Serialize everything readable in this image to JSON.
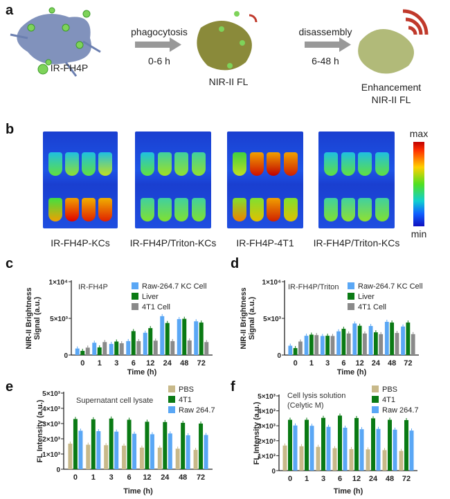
{
  "panels": {
    "a": {
      "label": "a",
      "probe_label": "IR-FH4P",
      "step1": {
        "label": "phagocytosis",
        "time": "0-6 h"
      },
      "cell2_label": "NIR-II FL",
      "step2": {
        "label": "disassembly",
        "time": "6-48 h"
      },
      "cell3_label_1": "Enhancement",
      "cell3_label_2": "NIR-II FL"
    },
    "b": {
      "label": "b",
      "images": [
        "IR-FH4P-KCs",
        "IR-FH4P/Triton-KCs",
        "IR-FH4P-4T1",
        "IR-FH4P/Triton-KCs"
      ],
      "colorbar": {
        "max": "max",
        "min": "min"
      }
    }
  },
  "chart_data": [
    {
      "panel": "c",
      "type": "bar",
      "title": "IR-FH4P",
      "xlabel": "Time (h)",
      "ylabel": [
        "NIR-II Brightness",
        "Signal (a.u.)"
      ],
      "categories": [
        "0",
        "1",
        "3",
        "6",
        "12",
        "24",
        "48",
        "72"
      ],
      "ylim": [
        0,
        10000
      ],
      "yticks": [
        {
          "v": 0,
          "label": "0"
        },
        {
          "v": 5000,
          "label": "5×10³"
        },
        {
          "v": 10000,
          "label": "1×10⁴"
        }
      ],
      "series": [
        {
          "name": "Raw-264.7 KC Cell",
          "color": "#5aa7f5",
          "values": [
            890,
            1680,
            1520,
            1900,
            3040,
            5300,
            4900,
            4600
          ]
        },
        {
          "name": "Liver",
          "color": "#0a7a14",
          "values": [
            570,
            1040,
            1840,
            3260,
            3670,
            4370,
            4940,
            4430
          ]
        },
        {
          "name": "4T1 Cell",
          "color": "#8a8a8a",
          "values": [
            1010,
            1770,
            1610,
            1900,
            1960,
            1900,
            1990,
            1770
          ]
        }
      ]
    },
    {
      "panel": "d",
      "type": "bar",
      "title": "IR-FH4P/Triton",
      "xlabel": "Time (h)",
      "ylabel": [
        "NIR-II Brightness",
        "Signal (a.u.)"
      ],
      "categories": [
        "0",
        "1",
        "3",
        "6",
        "12",
        "24",
        "48",
        "72"
      ],
      "ylim": [
        0,
        10000
      ],
      "yticks": [
        {
          "v": 0,
          "label": "0"
        },
        {
          "v": 5000,
          "label": "5×10³"
        },
        {
          "v": 10000,
          "label": "1×10⁴"
        }
      ],
      "series": [
        {
          "name": "Raw-264.7 KC Cell",
          "color": "#5aa7f5",
          "values": [
            1270,
            2630,
            2600,
            3230,
            4300,
            3960,
            4530,
            3890
          ]
        },
        {
          "name": "Liver",
          "color": "#0a7a14",
          "values": [
            950,
            2780,
            2630,
            3580,
            3990,
            3100,
            4430,
            4430
          ]
        },
        {
          "name": "4T1 Cell",
          "color": "#8a8a8a",
          "values": [
            1840,
            2720,
            2600,
            2940,
            2940,
            2850,
            3010,
            2850
          ]
        }
      ]
    },
    {
      "panel": "e",
      "type": "bar",
      "title": "Supernatant cell lysate",
      "xlabel": "Time (h)",
      "ylabel": [
        "FL Intensity (a.u.)"
      ],
      "categories": [
        "0",
        "1",
        "3",
        "6",
        "12",
        "24",
        "48",
        "72"
      ],
      "ylim": [
        0,
        5000
      ],
      "yticks": [
        {
          "v": 0,
          "label": "0"
        },
        {
          "v": 1000,
          "label": "1×10³"
        },
        {
          "v": 2000,
          "label": "2×10³"
        },
        {
          "v": 3000,
          "label": "3×10³"
        },
        {
          "v": 4000,
          "label": "4×10³"
        },
        {
          "v": 5000,
          "label": "5×10³"
        }
      ],
      "series": [
        {
          "name": "PBS",
          "color": "#c8b98a",
          "values": [
            1680,
            1610,
            1580,
            1550,
            1420,
            1420,
            1350,
            1270
          ]
        },
        {
          "name": "4T1",
          "color": "#0a7a14",
          "values": [
            3300,
            3280,
            3330,
            3250,
            3120,
            3100,
            3050,
            3000
          ]
        },
        {
          "name": "Raw 264.7",
          "color": "#5aa7f5",
          "values": [
            2530,
            2500,
            2470,
            2330,
            2300,
            2350,
            2230,
            2250
          ]
        }
      ]
    },
    {
      "panel": "f",
      "type": "bar",
      "title": "Cell lysis solution",
      "subtitle": "(Celytic M)",
      "xlabel": "Time (h)",
      "ylabel": [
        "FL Intensity (a.u.)"
      ],
      "categories": [
        "0",
        "1",
        "3",
        "6",
        "12",
        "24",
        "48",
        "72"
      ],
      "ylim": [
        0,
        5000
      ],
      "yticks": [
        {
          "v": 0,
          "label": "0"
        },
        {
          "v": 1000,
          "label": "1×10³"
        },
        {
          "v": 2000,
          "label": "2×10³"
        },
        {
          "v": 3000,
          "label": "3×10³"
        },
        {
          "v": 4000,
          "label": "4×10³"
        },
        {
          "v": 5000,
          "label": "5×10³"
        }
      ],
      "series": [
        {
          "name": "PBS",
          "color": "#c8b98a",
          "values": [
            1680,
            1630,
            1590,
            1500,
            1440,
            1420,
            1370,
            1320
          ]
        },
        {
          "name": "4T1",
          "color": "#0a7a14",
          "values": [
            3400,
            3400,
            3530,
            3680,
            3520,
            3500,
            3400,
            3380
          ]
        },
        {
          "name": "Raw 264.7",
          "color": "#5aa7f5",
          "values": [
            3020,
            3000,
            2930,
            2870,
            2770,
            2790,
            2740,
            2680
          ]
        }
      ]
    }
  ]
}
